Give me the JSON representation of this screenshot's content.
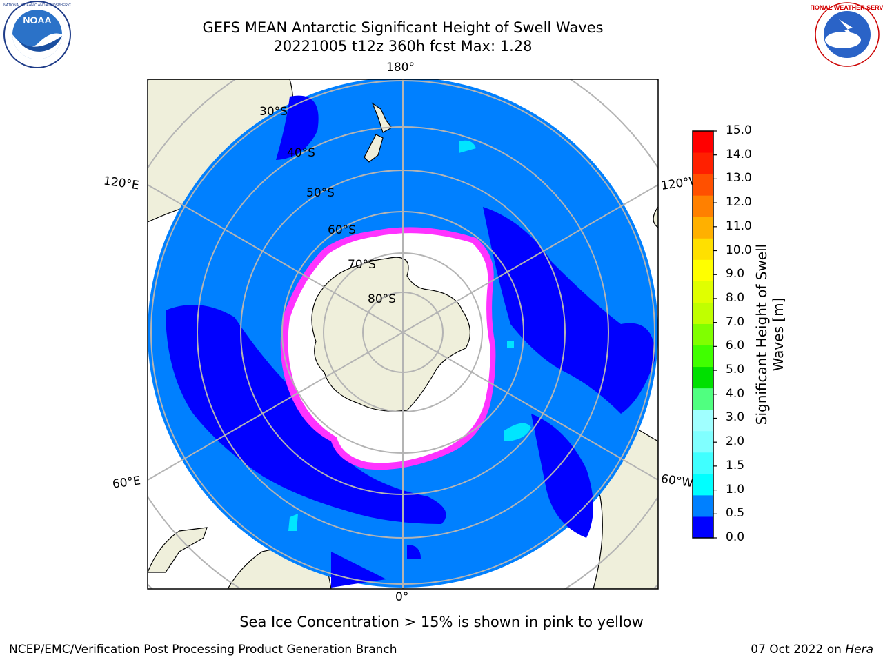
{
  "title": {
    "line1": "GEFS MEAN Antarctic Significant Height of Swell Waves",
    "line2": "20221005 t12z 360h fcst   Max: 1.28"
  },
  "logos": {
    "left": "noaa-logo",
    "right": "national-weather-service-logo"
  },
  "map": {
    "projection": "south-polar-stereographic",
    "lon_labels": [
      "180°",
      "120°E",
      "120°W",
      "60°E",
      "60°W",
      "0°"
    ],
    "lat_labels": [
      "30°S",
      "40°S",
      "50°S",
      "60°S",
      "70°S",
      "80°S"
    ],
    "colors": {
      "land": "#efefdb",
      "ocean_low": "#0000ff",
      "ocean_mid": "#0080ff",
      "ice_edge": "#ff33ff",
      "ice": "#ffffff"
    }
  },
  "colorbar": {
    "label": "Significant Height of Swell Waves [m]",
    "ticks": [
      "15.0",
      "14.0",
      "13.0",
      "12.0",
      "11.0",
      "10.0",
      "9.0",
      "8.0",
      "7.0",
      "6.0",
      "5.0",
      "4.0",
      "3.0",
      "2.0",
      "1.5",
      "1.0",
      "0.5",
      "0.0"
    ],
    "colors": [
      "#0000ff",
      "#0080ff",
      "#00ffff",
      "#40ffff",
      "#80ffff",
      "#a0ffff",
      "#50ff80",
      "#00e000",
      "#40ff00",
      "#80ff00",
      "#c0ff00",
      "#e0ff00",
      "#ffff00",
      "#ffe000",
      "#ffb000",
      "#ff8000",
      "#ff5000",
      "#ff2000",
      "#ff0000"
    ]
  },
  "caption": "Sea Ice Concentration > 15% is shown in pink to yellow",
  "footer": {
    "left": "NCEP/EMC/Verification Post Processing Product Generation Branch",
    "right_date": "07 Oct 2022 on ",
    "right_machine": "Hera"
  }
}
